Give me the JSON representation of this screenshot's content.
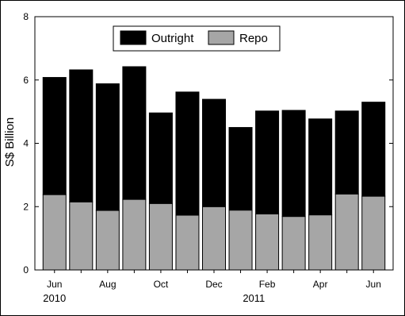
{
  "chart_data": {
    "type": "bar",
    "stacked": true,
    "ylabel": "S$ Billion",
    "ylim": [
      0,
      8
    ],
    "yticks": [
      0,
      2,
      4,
      6,
      8
    ],
    "categories": [
      "Jun 2010",
      "Jul 2010",
      "Aug 2010",
      "Sep 2010",
      "Oct 2010",
      "Nov 2010",
      "Dec 2010",
      "Jan 2011",
      "Feb 2011",
      "Mar 2011",
      "Apr 2011",
      "May 2011",
      "Jun 2011"
    ],
    "xtick_labels": [
      "Jun",
      "",
      "Aug",
      "",
      "Oct",
      "",
      "Dec",
      "",
      "Feb",
      "",
      "Apr",
      "",
      "Jun"
    ],
    "year_labels": [
      {
        "label": "2010",
        "category_index": 0
      },
      {
        "label": "2011",
        "category_index": 7.5
      }
    ],
    "series": [
      {
        "name": "Repo",
        "color": "#a6a6a6",
        "values": [
          2.38,
          2.15,
          1.88,
          2.23,
          2.1,
          1.73,
          2.0,
          1.89,
          1.77,
          1.69,
          1.74,
          2.4,
          2.33
        ]
      },
      {
        "name": "Outright",
        "color": "#000000",
        "values": [
          3.7,
          4.17,
          4.0,
          4.19,
          2.86,
          3.89,
          3.39,
          2.61,
          3.25,
          3.35,
          3.03,
          2.62,
          2.97
        ]
      }
    ],
    "legend_order": [
      "Outright",
      "Repo"
    ],
    "legend": "top-center",
    "grid": false
  }
}
